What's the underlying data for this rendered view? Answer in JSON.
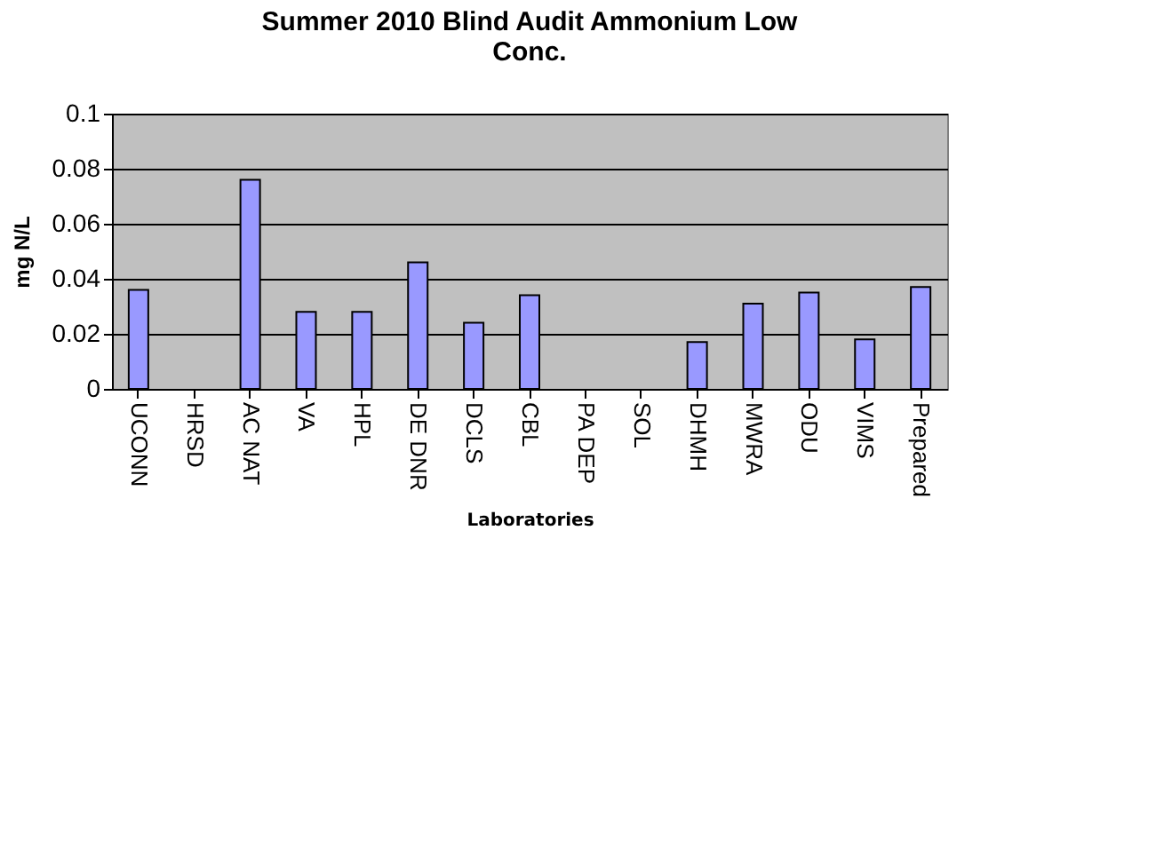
{
  "chart_data": {
    "type": "bar",
    "title": "Summer 2010 Blind Audit Ammonium Low Conc.",
    "xlabel": "Laboratories",
    "ylabel": "mg N/L",
    "categories": [
      "UCONN",
      "HRSD",
      "AC NAT",
      "VA",
      "HPL",
      "DE DNR",
      "DCLS",
      "CBL",
      "PA DEP",
      "SOL",
      "DHMH",
      "MWRA",
      "ODU",
      "VIMS",
      "Prepared"
    ],
    "values": [
      0.036,
      null,
      0.076,
      0.028,
      0.028,
      0.046,
      0.024,
      0.034,
      null,
      null,
      0.017,
      0.031,
      0.035,
      0.018,
      0.037
    ],
    "color": "#9999ff",
    "ylim": [
      0,
      0.1
    ],
    "yticks": [
      0,
      0.02,
      0.04,
      0.06,
      0.08,
      0.1
    ],
    "grid": "y"
  }
}
